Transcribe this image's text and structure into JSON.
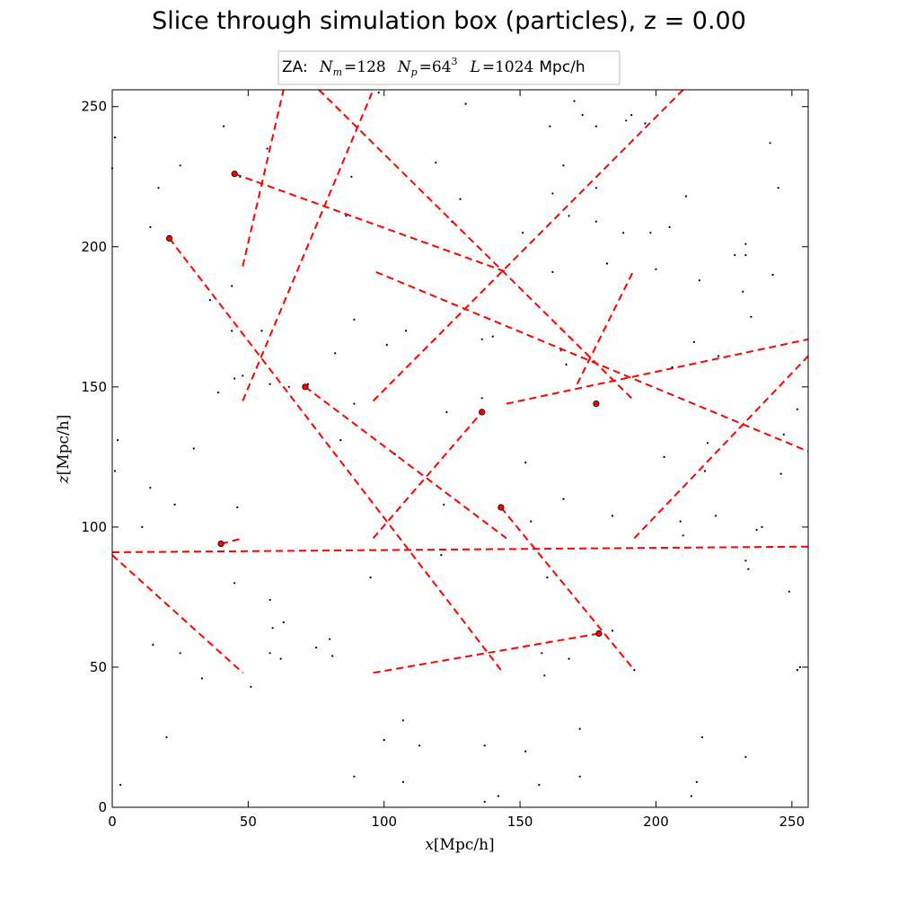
{
  "chart_data": {
    "type": "scatter",
    "title": "Slice through simulation box (particles), z = 0.00",
    "xlabel": {
      "var": "x",
      "unit": "[Mpc/h]"
    },
    "ylabel": {
      "var": "z",
      "unit": "[Mpc/h]"
    },
    "xlim": [
      0,
      256
    ],
    "ylim": [
      0,
      256
    ],
    "xticks": [
      0,
      50,
      100,
      150,
      200,
      250
    ],
    "yticks": [
      0,
      50,
      100,
      150,
      200,
      250
    ],
    "grid": false,
    "annotation": {
      "prefix": "ZA:",
      "nm_sym": "N",
      "nm_sub": "m",
      "nm_val": "=128",
      "np_sym": "N",
      "np_sub": "p",
      "np_val": "=64",
      "np_exp": "3",
      "l_sym": "L",
      "l_val": "=1024",
      "unit": "Mpc/h"
    },
    "colors": {
      "particles": "#000000",
      "highlighted": "#ff0000",
      "trajectories": "#ff0000"
    },
    "particles": [
      [
        1,
        239
      ],
      [
        0,
        228
      ],
      [
        2,
        131
      ],
      [
        1,
        120
      ],
      [
        3,
        8
      ],
      [
        11,
        100
      ],
      [
        14,
        114
      ],
      [
        14,
        207
      ],
      [
        15,
        58
      ],
      [
        17,
        221
      ],
      [
        20,
        25
      ],
      [
        21,
        203
      ],
      [
        23,
        108
      ],
      [
        25,
        229
      ],
      [
        25,
        55
      ],
      [
        30,
        128
      ],
      [
        33,
        46
      ],
      [
        36,
        181
      ],
      [
        39,
        148
      ],
      [
        41,
        243
      ],
      [
        44,
        186
      ],
      [
        44,
        170
      ],
      [
        45,
        80
      ],
      [
        45,
        153
      ],
      [
        46,
        107
      ],
      [
        47,
        225
      ],
      [
        48,
        154
      ],
      [
        51,
        43
      ],
      [
        55,
        170
      ],
      [
        57,
        235
      ],
      [
        58,
        74
      ],
      [
        58,
        55
      ],
      [
        58,
        151
      ],
      [
        59,
        64
      ],
      [
        62,
        53
      ],
      [
        63,
        66
      ],
      [
        65,
        150
      ],
      [
        72,
        151
      ],
      [
        75,
        57
      ],
      [
        80,
        60
      ],
      [
        81,
        54
      ],
      [
        82,
        162
      ],
      [
        84,
        131
      ],
      [
        86,
        211
      ],
      [
        88,
        225
      ],
      [
        89,
        174
      ],
      [
        89,
        11
      ],
      [
        89,
        144
      ],
      [
        95,
        82
      ],
      [
        98,
        255
      ],
      [
        100,
        24
      ],
      [
        101,
        165
      ],
      [
        104,
        126
      ],
      [
        107,
        9
      ],
      [
        107,
        31
      ],
      [
        108,
        170
      ],
      [
        113,
        22
      ],
      [
        119,
        230
      ],
      [
        121,
        90
      ],
      [
        122,
        108
      ],
      [
        123,
        141
      ],
      [
        125,
        209
      ],
      [
        128,
        217
      ],
      [
        130,
        251
      ],
      [
        136,
        167
      ],
      [
        136,
        146
      ],
      [
        137,
        2
      ],
      [
        137,
        22
      ],
      [
        140,
        168
      ],
      [
        142,
        4
      ],
      [
        151,
        205
      ],
      [
        152,
        20
      ],
      [
        152,
        123
      ],
      [
        154,
        102
      ],
      [
        157,
        8
      ],
      [
        158,
        55
      ],
      [
        159,
        47
      ],
      [
        160,
        82
      ],
      [
        161,
        243
      ],
      [
        162,
        219
      ],
      [
        162,
        191
      ],
      [
        165,
        163
      ],
      [
        166,
        229
      ],
      [
        166,
        110
      ],
      [
        167,
        158
      ],
      [
        168,
        53
      ],
      [
        168,
        211
      ],
      [
        170,
        252
      ],
      [
        172,
        11
      ],
      [
        172,
        28
      ],
      [
        173,
        247
      ],
      [
        178,
        209
      ],
      [
        178,
        243
      ],
      [
        178,
        221
      ],
      [
        182,
        194
      ],
      [
        184,
        104
      ],
      [
        184,
        63
      ],
      [
        188,
        205
      ],
      [
        189,
        245
      ],
      [
        191,
        247
      ],
      [
        192,
        49
      ],
      [
        196,
        244
      ],
      [
        198,
        205
      ],
      [
        200,
        192
      ],
      [
        203,
        125
      ],
      [
        205,
        207
      ],
      [
        206,
        157
      ],
      [
        209,
        102
      ],
      [
        210,
        97
      ],
      [
        211,
        218
      ],
      [
        213,
        4
      ],
      [
        214,
        166
      ],
      [
        215,
        9
      ],
      [
        216,
        188
      ],
      [
        217,
        25
      ],
      [
        218,
        120
      ],
      [
        219,
        130
      ],
      [
        222,
        104
      ],
      [
        223,
        161
      ],
      [
        229,
        197
      ],
      [
        232,
        184
      ],
      [
        233,
        201
      ],
      [
        233,
        197
      ],
      [
        233,
        18
      ],
      [
        233,
        88
      ],
      [
        234,
        85
      ],
      [
        235,
        175
      ],
      [
        237,
        99
      ],
      [
        239,
        100
      ],
      [
        242,
        237
      ],
      [
        243,
        190
      ],
      [
        245,
        221
      ],
      [
        246,
        119
      ],
      [
        247,
        133
      ],
      [
        249,
        77
      ],
      [
        252,
        142
      ],
      [
        252,
        49
      ],
      [
        253,
        50
      ]
    ],
    "highlighted": [
      [
        45,
        226
      ],
      [
        21,
        203
      ],
      [
        71,
        150
      ],
      [
        40,
        94
      ],
      [
        136,
        141
      ],
      [
        143,
        107
      ],
      [
        179,
        62
      ],
      [
        178,
        144
      ]
    ],
    "trajectories": [
      [
        [
          48,
          193
        ],
        [
          63,
          256
        ]
      ],
      [
        [
          48,
          145
        ],
        [
          96,
          256
        ]
      ],
      [
        [
          45,
          226
        ],
        [
          145,
          191
        ]
      ],
      [
        [
          21,
          203
        ],
        [
          143,
          49
        ]
      ],
      [
        [
          76,
          256
        ],
        [
          192,
          145
        ]
      ],
      [
        [
          96,
          145
        ],
        [
          210,
          256
        ]
      ],
      [
        [
          97,
          191
        ],
        [
          256,
          127
        ]
      ],
      [
        [
          145,
          144
        ],
        [
          256,
          167
        ]
      ],
      [
        [
          171,
          151
        ],
        [
          192,
          192
        ]
      ],
      [
        [
          71,
          150
        ],
        [
          145,
          96
        ]
      ],
      [
        [
          96,
          96
        ],
        [
          136,
          141
        ]
      ],
      [
        [
          192,
          96
        ],
        [
          256,
          161
        ]
      ],
      [
        [
          0,
          91
        ],
        [
          256,
          93
        ]
      ],
      [
        [
          40,
          94
        ],
        [
          48,
          96
        ]
      ],
      [
        [
          143,
          107
        ],
        [
          192,
          49
        ]
      ],
      [
        [
          96,
          48
        ],
        [
          179,
          62
        ]
      ],
      [
        [
          0,
          90
        ],
        [
          48,
          48
        ]
      ]
    ]
  }
}
